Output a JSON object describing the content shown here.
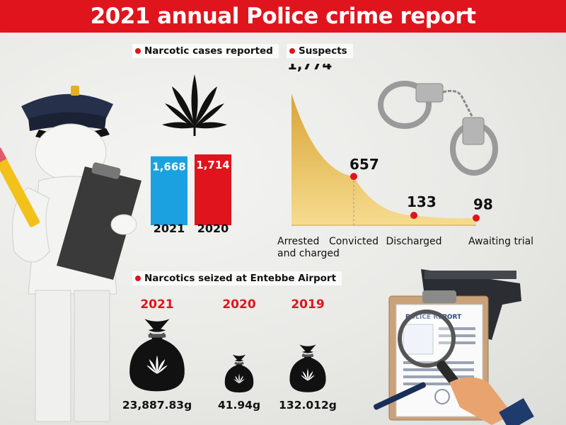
{
  "header": {
    "title": "2021 annual Police crime report"
  },
  "sections": {
    "narcotic_cases": "Narcotic cases reported",
    "suspects": "Suspects",
    "seized": "Narcotics seized at Entebbe Airport"
  },
  "colors": {
    "accent_red": "#e0141c",
    "bar_blue": "#1ba1e0",
    "bar_red": "#e0141c",
    "area_gold": "#edbf4c"
  },
  "icons": [
    "police-officer-figure",
    "pencil-icon",
    "clipboard-icon",
    "cannabis-leaf-icon",
    "handcuffs-icon",
    "money-bag-icon",
    "police-report-icon",
    "magnifier-icon",
    "pistol-icon",
    "pen-icon"
  ],
  "chart_data": [
    {
      "type": "bar",
      "title": "Narcotic cases reported",
      "categories": [
        "2021",
        "2020"
      ],
      "values": [
        1668,
        1714
      ],
      "value_labels": [
        "1,668",
        "1,714"
      ],
      "colors": [
        "#1ba1e0",
        "#e0141c"
      ]
    },
    {
      "type": "area",
      "title": "Suspects",
      "categories": [
        "Arrested and charged",
        "Convicted",
        "Discharged",
        "Awaiting trial"
      ],
      "category_lines": [
        [
          "Arrested",
          "and charged"
        ],
        [
          "Convicted"
        ],
        [
          "Discharged"
        ],
        [
          "Awaiting trial"
        ]
      ],
      "values": [
        1774,
        657,
        133,
        98
      ],
      "value_labels": [
        "1,774",
        "657",
        "133",
        "98"
      ]
    },
    {
      "type": "bar",
      "title": "Narcotics seized at Entebbe Airport",
      "categories": [
        "2021",
        "2020",
        "2019"
      ],
      "values": [
        23887.83,
        41.94,
        132.012
      ],
      "value_labels": [
        "23,887.83g",
        "41.94g",
        "132.012g"
      ],
      "unit": "g"
    }
  ]
}
